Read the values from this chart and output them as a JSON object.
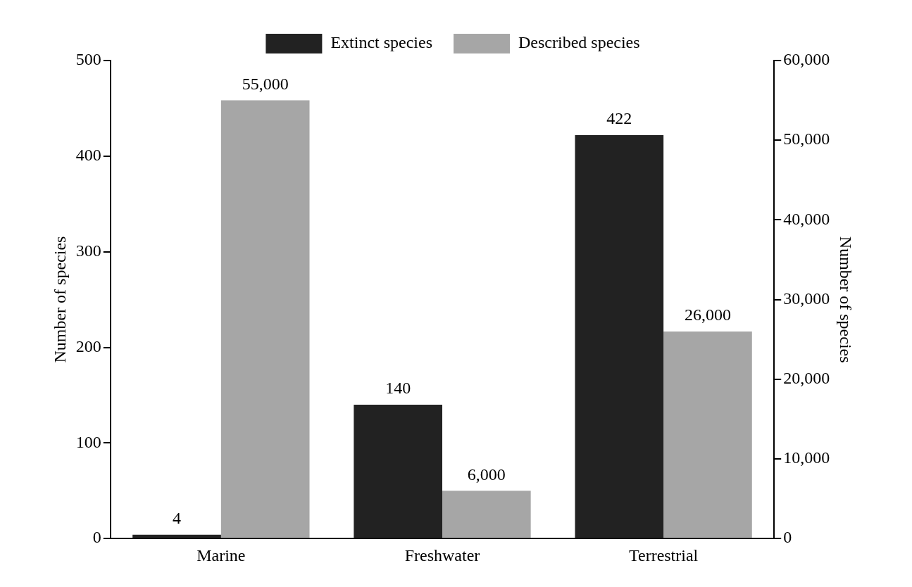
{
  "chart_data": {
    "type": "bar",
    "categories": [
      "Marine",
      "Freshwater",
      "Terrestrial"
    ],
    "series": [
      {
        "name": "Extinct species",
        "color": "#222222",
        "values": [
          4,
          140,
          422
        ],
        "value_labels": [
          "4",
          "140",
          "422"
        ]
      },
      {
        "name": "Described species",
        "color": "#a6a6a6",
        "axis": "y2",
        "values": [
          55000,
          6000,
          26000
        ],
        "value_labels": [
          "55,000",
          "6,000",
          "26,000"
        ]
      }
    ],
    "ylabel": "Number of species",
    "y2label": "Number of species",
    "ylim": [
      0,
      500
    ],
    "yticks": [
      0,
      100,
      200,
      300,
      400,
      500
    ],
    "y2lim": [
      0,
      60000
    ],
    "y2ticks": [
      0,
      {
        "value": 10000,
        "label": "10,000"
      },
      {
        "value": 20000,
        "label": "20,000"
      },
      {
        "value": 30000,
        "label": "30,000"
      },
      {
        "value": 40000,
        "label": "40,000"
      },
      {
        "value": 50000,
        "label": "50,000"
      },
      {
        "value": 60000,
        "label": "60,000"
      }
    ],
    "legend": "top",
    "grid": false
  }
}
